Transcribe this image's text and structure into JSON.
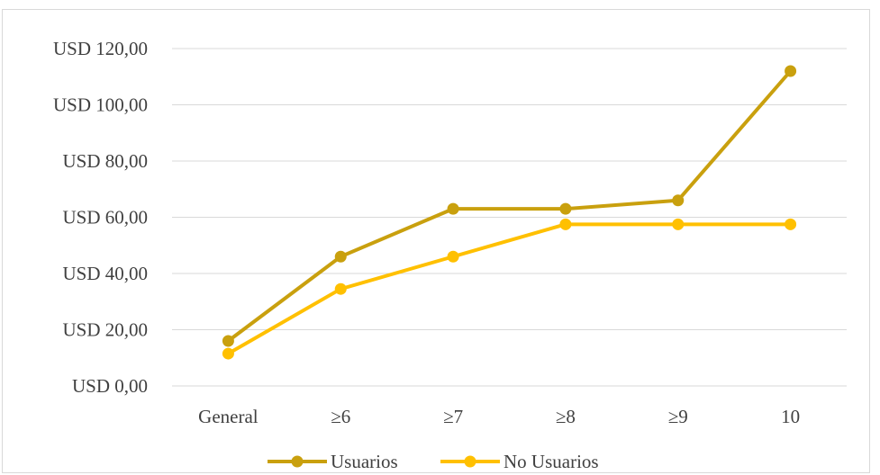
{
  "chart_data": {
    "type": "line",
    "title": "",
    "xlabel": "",
    "ylabel": "",
    "categories": [
      "General",
      "≥6",
      "≥7",
      "≥8",
      "≥9",
      "10"
    ],
    "ylim": [
      0,
      120
    ],
    "yticks": [
      "USD 0,00",
      "USD 20,00",
      "USD 40,00",
      "USD 60,00",
      "USD 80,00",
      "USD 100,00",
      "USD 120,00"
    ],
    "ytick_values": [
      0,
      20,
      40,
      60,
      80,
      100,
      120
    ],
    "grid": true,
    "legend_position": "bottom",
    "series": [
      {
        "name": "Usuarios",
        "color": "#c9a00e",
        "values": [
          16,
          46,
          63,
          63,
          66,
          112
        ]
      },
      {
        "name": "No Usuarios",
        "color": "#ffc000",
        "values": [
          11.5,
          34.5,
          46,
          57.5,
          57.5,
          57.5
        ]
      }
    ]
  }
}
